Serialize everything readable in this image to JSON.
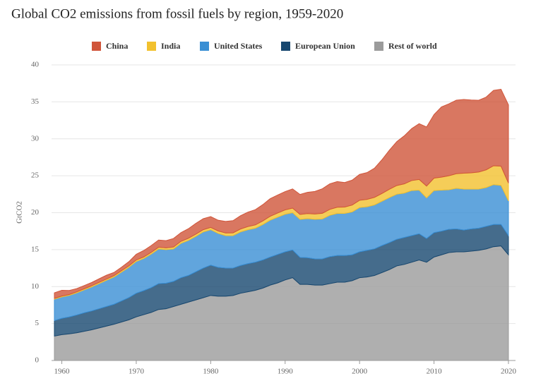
{
  "chart_data": {
    "type": "stacked_area",
    "title": "Global CO2 emissions from fossil fuels by region, 1959-2020",
    "y_label": "GtCO2",
    "x": [
      1959,
      1960,
      1961,
      1962,
      1963,
      1964,
      1965,
      1966,
      1967,
      1968,
      1969,
      1970,
      1971,
      1972,
      1973,
      1974,
      1975,
      1976,
      1977,
      1978,
      1979,
      1980,
      1981,
      1982,
      1983,
      1984,
      1985,
      1986,
      1987,
      1988,
      1989,
      1990,
      1991,
      1992,
      1993,
      1994,
      1995,
      1996,
      1997,
      1998,
      1999,
      2000,
      2001,
      2002,
      2003,
      2004,
      2005,
      2006,
      2007,
      2008,
      2009,
      2010,
      2011,
      2012,
      2013,
      2014,
      2015,
      2016,
      2017,
      2018,
      2019,
      2020
    ],
    "xlim": [
      1959,
      2020
    ],
    "xticks": [
      1960,
      1970,
      1980,
      1990,
      2000,
      2010,
      2020
    ],
    "ylim": [
      0,
      40
    ],
    "yticks": [
      0,
      5,
      10,
      15,
      20,
      25,
      30,
      35,
      40
    ],
    "grid": true,
    "series": [
      {
        "name": "China",
        "color": "#d0553a",
        "values": [
          0.74,
          0.78,
          0.55,
          0.44,
          0.44,
          0.44,
          0.48,
          0.52,
          0.43,
          0.47,
          0.57,
          0.77,
          0.87,
          0.93,
          0.97,
          0.98,
          1.15,
          1.18,
          1.3,
          1.46,
          1.49,
          1.47,
          1.45,
          1.57,
          1.65,
          1.8,
          1.96,
          2.06,
          2.21,
          2.39,
          2.43,
          2.48,
          2.6,
          2.71,
          2.88,
          3.06,
          3.32,
          3.46,
          3.47,
          3.32,
          3.37,
          3.5,
          3.63,
          3.95,
          4.56,
          5.28,
          5.94,
          6.5,
          7.03,
          7.55,
          8.0,
          8.6,
          9.5,
          9.73,
          9.96,
          9.97,
          9.85,
          9.72,
          9.84,
          10.2,
          10.4,
          10.6
        ]
      },
      {
        "name": "India",
        "color": "#f2c12e",
        "values": [
          0.11,
          0.12,
          0.13,
          0.14,
          0.15,
          0.16,
          0.17,
          0.17,
          0.18,
          0.19,
          0.2,
          0.2,
          0.21,
          0.22,
          0.23,
          0.24,
          0.26,
          0.27,
          0.28,
          0.29,
          0.3,
          0.3,
          0.33,
          0.35,
          0.37,
          0.39,
          0.42,
          0.45,
          0.48,
          0.52,
          0.56,
          0.58,
          0.62,
          0.66,
          0.68,
          0.72,
          0.77,
          0.8,
          0.84,
          0.86,
          0.93,
          0.98,
          1.0,
          1.02,
          1.05,
          1.12,
          1.18,
          1.25,
          1.35,
          1.45,
          1.6,
          1.68,
          1.76,
          1.9,
          1.97,
          2.15,
          2.2,
          2.3,
          2.4,
          2.55,
          2.6,
          2.4
        ]
      },
      {
        "name": "United States",
        "color": "#3a8fd4",
        "values": [
          2.9,
          2.9,
          2.9,
          3.0,
          3.1,
          3.25,
          3.4,
          3.55,
          3.7,
          3.9,
          4.1,
          4.3,
          4.35,
          4.55,
          4.7,
          4.55,
          4.4,
          4.65,
          4.75,
          4.8,
          4.9,
          4.8,
          4.6,
          4.4,
          4.4,
          4.55,
          4.6,
          4.6,
          4.8,
          5.0,
          5.05,
          5.1,
          5.05,
          5.15,
          5.3,
          5.35,
          5.4,
          5.6,
          5.7,
          5.7,
          5.8,
          6.0,
          5.9,
          5.95,
          6.0,
          6.1,
          6.1,
          6.0,
          6.1,
          5.9,
          5.5,
          5.7,
          5.55,
          5.35,
          5.5,
          5.55,
          5.4,
          5.3,
          5.25,
          5.4,
          5.3,
          4.7
        ]
      },
      {
        "name": "European Union",
        "color": "#17476f",
        "values": [
          2.1,
          2.2,
          2.3,
          2.4,
          2.5,
          2.55,
          2.6,
          2.65,
          2.7,
          2.85,
          3.0,
          3.2,
          3.25,
          3.35,
          3.5,
          3.45,
          3.4,
          3.6,
          3.6,
          3.8,
          4.0,
          4.1,
          3.9,
          3.8,
          3.7,
          3.75,
          3.8,
          3.8,
          3.8,
          3.8,
          3.85,
          3.8,
          3.75,
          3.65,
          3.6,
          3.55,
          3.55,
          3.65,
          3.6,
          3.6,
          3.5,
          3.5,
          3.6,
          3.6,
          3.65,
          3.65,
          3.6,
          3.65,
          3.6,
          3.55,
          3.2,
          3.3,
          3.2,
          3.15,
          3.1,
          2.95,
          3.0,
          3.0,
          3.05,
          3.0,
          2.9,
          2.6
        ]
      },
      {
        "name": "Rest of world",
        "color": "#9b9b9b",
        "values": [
          3.3,
          3.5,
          3.6,
          3.75,
          3.95,
          4.15,
          4.4,
          4.65,
          4.9,
          5.2,
          5.5,
          5.9,
          6.2,
          6.5,
          6.9,
          7.0,
          7.3,
          7.6,
          7.9,
          8.2,
          8.5,
          8.8,
          8.7,
          8.7,
          8.8,
          9.1,
          9.3,
          9.5,
          9.8,
          10.2,
          10.5,
          10.9,
          11.2,
          10.3,
          10.3,
          10.2,
          10.2,
          10.4,
          10.6,
          10.6,
          10.8,
          11.2,
          11.3,
          11.5,
          11.9,
          12.3,
          12.8,
          13.0,
          13.3,
          13.6,
          13.3,
          14.0,
          14.3,
          14.6,
          14.7,
          14.7,
          14.8,
          14.9,
          15.1,
          15.4,
          15.5,
          14.3
        ]
      }
    ]
  }
}
